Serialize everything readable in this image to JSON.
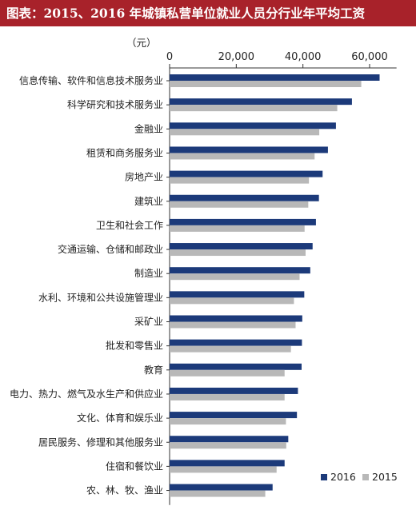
{
  "title": "图表：2015、2016 年城镇私营单位就业人员分行业年平均工资",
  "colors": {
    "title_bg": "#a8222a",
    "series_2016": "#1c3a7a",
    "series_2015": "#b8b8b8"
  },
  "chart_data": {
    "type": "bar",
    "orientation": "horizontal",
    "title": "",
    "unit_label": "（元）",
    "x_ticks": [
      "0",
      "20,000",
      "40,000",
      "60,000"
    ],
    "xlim": [
      0,
      70000
    ],
    "legend_position": "bottom-right",
    "categories": [
      "信息传输、软件和信息技术服务业",
      "科学研究和技术服务业",
      "金融业",
      "租赁和商务服务业",
      "房地产业",
      "建筑业",
      "卫生和社会工作",
      "交通运输、仓储和邮政业",
      "制造业",
      "水利、环境和公共设施管理业",
      "采矿业",
      "批发和零售业",
      "教育",
      "电力、热力、燃气及水生产和供应业",
      "文化、体育和娱乐业",
      "居民服务、修理和其他服务业",
      "住宿和餐饮业",
      "农、林、牧、渔业"
    ],
    "series": [
      {
        "name": "2016",
        "values": [
          63000,
          54700,
          49900,
          47500,
          45900,
          44800,
          43900,
          42900,
          42200,
          40400,
          39800,
          39700,
          39600,
          38500,
          38200,
          35600,
          34500,
          30900
        ]
      },
      {
        "name": "2015",
        "values": [
          57500,
          50300,
          44900,
          43500,
          41800,
          41600,
          40500,
          40800,
          39000,
          37300,
          37800,
          36400,
          34500,
          34500,
          34900,
          35000,
          32100,
          28700
        ]
      }
    ]
  }
}
